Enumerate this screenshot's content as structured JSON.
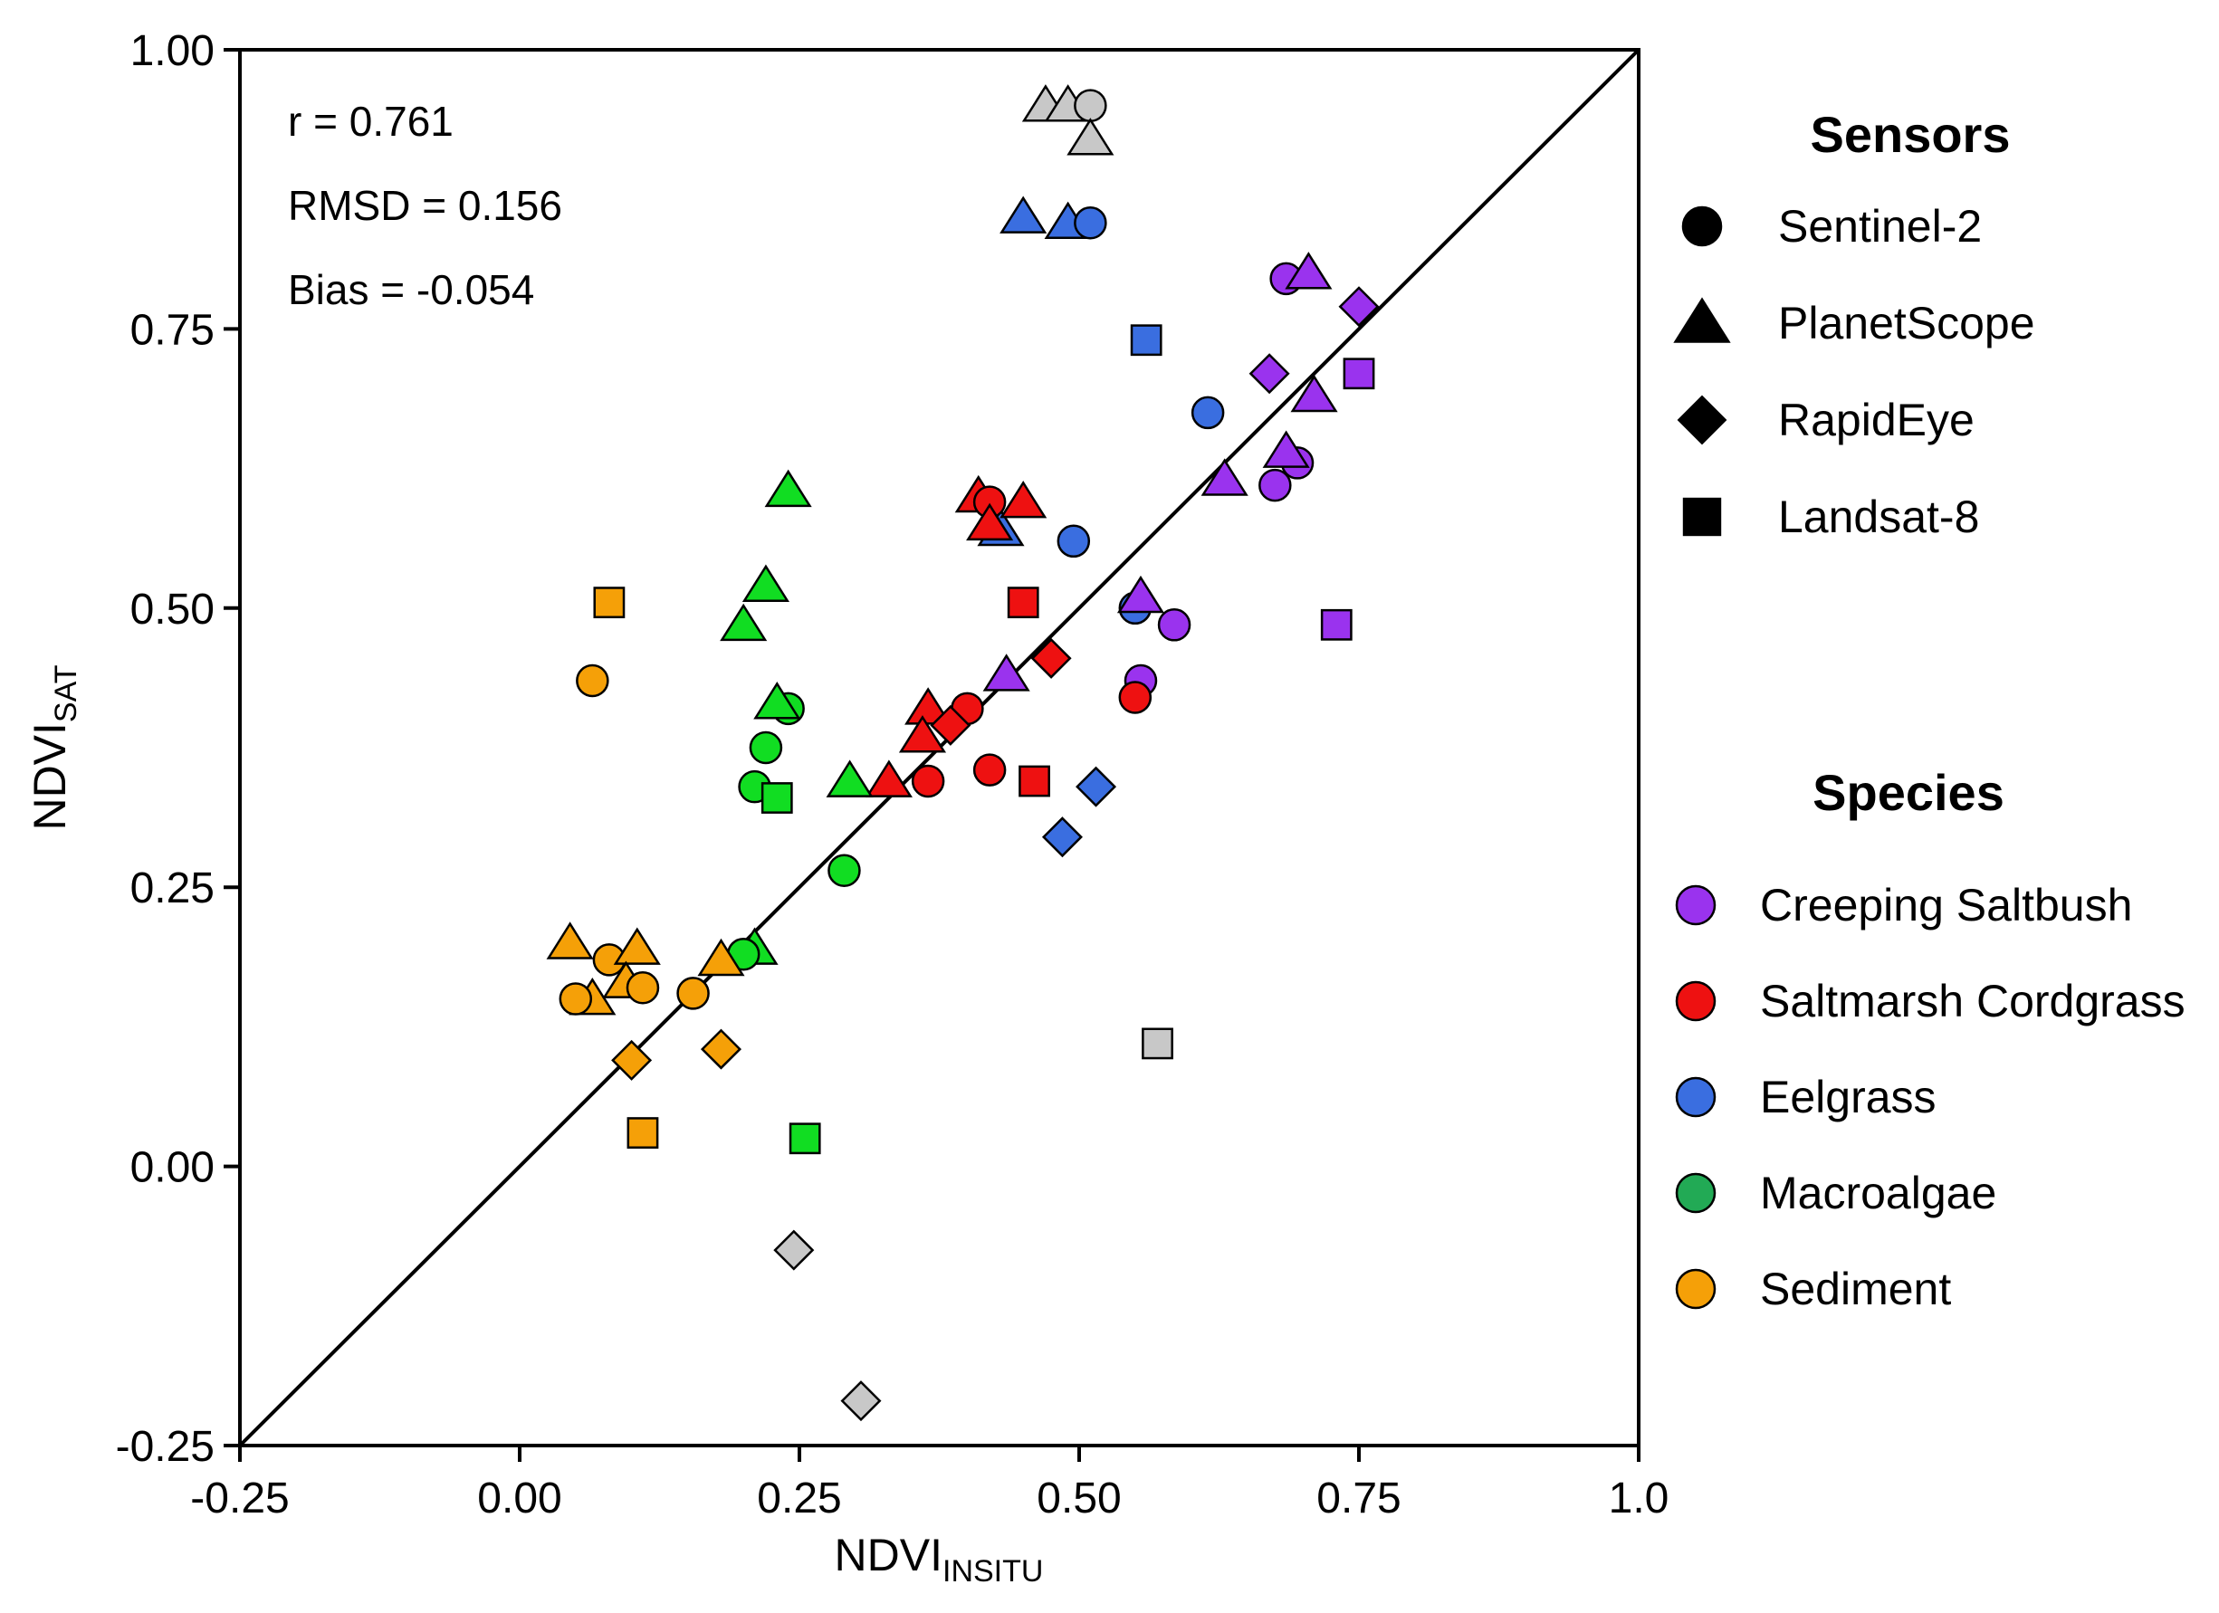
{
  "chart_data": {
    "type": "scatter",
    "xlabel": {
      "main": "NDVI",
      "sub": "INSITU"
    },
    "ylabel": {
      "main": "NDVI",
      "sub": "SAT"
    },
    "xlim": [
      -0.25,
      1.0
    ],
    "ylim": [
      -0.25,
      1.0
    ],
    "x_ticks": [
      "-0.25",
      "0.00",
      "0.25",
      "0.50",
      "0.75",
      "1.0"
    ],
    "x_tick_values": [
      -0.25,
      0,
      0.25,
      0.5,
      0.75,
      1.0
    ],
    "y_ticks": [
      "-0.25",
      "0.00",
      "0.25",
      "0.50",
      "0.75",
      "1.00"
    ],
    "y_tick_values": [
      -0.25,
      0,
      0.25,
      0.5,
      0.75,
      1.0
    ],
    "reference_line": "1:1",
    "stats": [
      "r = 0.761",
      "RMSD = 0.156",
      "Bias = -0.054"
    ],
    "legend_sensors_title": "Sensors",
    "sensors": [
      {
        "key": "circle",
        "label": "Sentinel-2"
      },
      {
        "key": "triangle",
        "label": "PlanetScope"
      },
      {
        "key": "diamond",
        "label": "RapidEye"
      },
      {
        "key": "square",
        "label": "Landsat-8"
      }
    ],
    "legend_species_title": "Species",
    "species": [
      {
        "key": "saltbush",
        "label": "Creeping Saltbush",
        "color": "#9a33ee"
      },
      {
        "key": "cordgrass",
        "label": "Saltmarsh Cordgrass",
        "color": "#ee1111"
      },
      {
        "key": "eelgrass",
        "label": "Eelgrass",
        "color": "#3a6ee0"
      },
      {
        "key": "macroalgae",
        "label": "Macroalgae",
        "color": "#11dd22"
      },
      {
        "key": "sediment",
        "label": "Sediment",
        "color": "#f5a008"
      }
    ],
    "legend_macroalgae_color": "#22aa55",
    "excluded_color": "#c8c8c8",
    "points": [
      {
        "x": 0.47,
        "y": 0.95,
        "sensor": "triangle",
        "species": "excluded"
      },
      {
        "x": 0.49,
        "y": 0.95,
        "sensor": "triangle",
        "species": "excluded"
      },
      {
        "x": 0.51,
        "y": 0.95,
        "sensor": "circle",
        "species": "excluded"
      },
      {
        "x": 0.51,
        "y": 0.92,
        "sensor": "triangle",
        "species": "excluded"
      },
      {
        "x": 0.57,
        "y": 0.11,
        "sensor": "square",
        "species": "excluded"
      },
      {
        "x": 0.245,
        "y": -0.075,
        "sensor": "diamond",
        "species": "excluded"
      },
      {
        "x": 0.305,
        "y": -0.21,
        "sensor": "diamond",
        "species": "excluded"
      },
      {
        "x": 0.45,
        "y": 0.85,
        "sensor": "triangle",
        "species": "eelgrass"
      },
      {
        "x": 0.49,
        "y": 0.845,
        "sensor": "triangle",
        "species": "eelgrass"
      },
      {
        "x": 0.51,
        "y": 0.845,
        "sensor": "circle",
        "species": "eelgrass"
      },
      {
        "x": 0.56,
        "y": 0.74,
        "sensor": "square",
        "species": "eelgrass"
      },
      {
        "x": 0.615,
        "y": 0.675,
        "sensor": "circle",
        "species": "eelgrass"
      },
      {
        "x": 0.495,
        "y": 0.56,
        "sensor": "circle",
        "species": "eelgrass"
      },
      {
        "x": 0.43,
        "y": 0.57,
        "sensor": "triangle",
        "species": "eelgrass"
      },
      {
        "x": 0.55,
        "y": 0.5,
        "sensor": "circle",
        "species": "eelgrass"
      },
      {
        "x": 0.515,
        "y": 0.34,
        "sensor": "diamond",
        "species": "eelgrass"
      },
      {
        "x": 0.485,
        "y": 0.295,
        "sensor": "diamond",
        "species": "eelgrass"
      },
      {
        "x": 0.685,
        "y": 0.795,
        "sensor": "circle",
        "species": "saltbush"
      },
      {
        "x": 0.705,
        "y": 0.8,
        "sensor": "triangle",
        "species": "saltbush"
      },
      {
        "x": 0.75,
        "y": 0.77,
        "sensor": "diamond",
        "species": "saltbush"
      },
      {
        "x": 0.67,
        "y": 0.71,
        "sensor": "diamond",
        "species": "saltbush"
      },
      {
        "x": 0.75,
        "y": 0.71,
        "sensor": "square",
        "species": "saltbush"
      },
      {
        "x": 0.71,
        "y": 0.69,
        "sensor": "triangle",
        "species": "saltbush"
      },
      {
        "x": 0.695,
        "y": 0.63,
        "sensor": "circle",
        "species": "saltbush"
      },
      {
        "x": 0.685,
        "y": 0.64,
        "sensor": "triangle",
        "species": "saltbush"
      },
      {
        "x": 0.675,
        "y": 0.61,
        "sensor": "circle",
        "species": "saltbush"
      },
      {
        "x": 0.63,
        "y": 0.615,
        "sensor": "triangle",
        "species": "saltbush"
      },
      {
        "x": 0.555,
        "y": 0.51,
        "sensor": "triangle",
        "species": "saltbush"
      },
      {
        "x": 0.585,
        "y": 0.485,
        "sensor": "circle",
        "species": "saltbush"
      },
      {
        "x": 0.73,
        "y": 0.485,
        "sensor": "square",
        "species": "saltbush"
      },
      {
        "x": 0.435,
        "y": 0.44,
        "sensor": "triangle",
        "species": "saltbush"
      },
      {
        "x": 0.555,
        "y": 0.435,
        "sensor": "circle",
        "species": "saltbush"
      },
      {
        "x": 0.41,
        "y": 0.6,
        "sensor": "triangle",
        "species": "cordgrass"
      },
      {
        "x": 0.42,
        "y": 0.595,
        "sensor": "circle",
        "species": "cordgrass"
      },
      {
        "x": 0.45,
        "y": 0.595,
        "sensor": "triangle",
        "species": "cordgrass"
      },
      {
        "x": 0.42,
        "y": 0.575,
        "sensor": "triangle",
        "species": "cordgrass"
      },
      {
        "x": 0.45,
        "y": 0.505,
        "sensor": "square",
        "species": "cordgrass"
      },
      {
        "x": 0.475,
        "y": 0.455,
        "sensor": "diamond",
        "species": "cordgrass"
      },
      {
        "x": 0.55,
        "y": 0.42,
        "sensor": "circle",
        "species": "cordgrass"
      },
      {
        "x": 0.365,
        "y": 0.41,
        "sensor": "triangle",
        "species": "cordgrass"
      },
      {
        "x": 0.4,
        "y": 0.41,
        "sensor": "circle",
        "species": "cordgrass"
      },
      {
        "x": 0.385,
        "y": 0.395,
        "sensor": "diamond",
        "species": "cordgrass"
      },
      {
        "x": 0.36,
        "y": 0.385,
        "sensor": "triangle",
        "species": "cordgrass"
      },
      {
        "x": 0.42,
        "y": 0.355,
        "sensor": "circle",
        "species": "cordgrass"
      },
      {
        "x": 0.33,
        "y": 0.345,
        "sensor": "triangle",
        "species": "cordgrass"
      },
      {
        "x": 0.365,
        "y": 0.345,
        "sensor": "circle",
        "species": "cordgrass"
      },
      {
        "x": 0.46,
        "y": 0.345,
        "sensor": "square",
        "species": "cordgrass"
      },
      {
        "x": 0.24,
        "y": 0.605,
        "sensor": "triangle",
        "species": "macroalgae"
      },
      {
        "x": 0.22,
        "y": 0.52,
        "sensor": "triangle",
        "species": "macroalgae"
      },
      {
        "x": 0.2,
        "y": 0.485,
        "sensor": "triangle",
        "species": "macroalgae"
      },
      {
        "x": 0.24,
        "y": 0.41,
        "sensor": "circle",
        "species": "macroalgae"
      },
      {
        "x": 0.23,
        "y": 0.415,
        "sensor": "triangle",
        "species": "macroalgae"
      },
      {
        "x": 0.22,
        "y": 0.375,
        "sensor": "circle",
        "species": "macroalgae"
      },
      {
        "x": 0.21,
        "y": 0.34,
        "sensor": "circle",
        "species": "macroalgae"
      },
      {
        "x": 0.23,
        "y": 0.33,
        "sensor": "square",
        "species": "macroalgae"
      },
      {
        "x": 0.295,
        "y": 0.345,
        "sensor": "triangle",
        "species": "macroalgae"
      },
      {
        "x": 0.29,
        "y": 0.265,
        "sensor": "circle",
        "species": "macroalgae"
      },
      {
        "x": 0.21,
        "y": 0.195,
        "sensor": "triangle",
        "species": "macroalgae"
      },
      {
        "x": 0.2,
        "y": 0.19,
        "sensor": "circle",
        "species": "macroalgae"
      },
      {
        "x": 0.255,
        "y": 0.025,
        "sensor": "square",
        "species": "macroalgae"
      },
      {
        "x": 0.08,
        "y": 0.505,
        "sensor": "square",
        "species": "sediment"
      },
      {
        "x": 0.065,
        "y": 0.435,
        "sensor": "circle",
        "species": "sediment"
      },
      {
        "x": 0.045,
        "y": 0.2,
        "sensor": "triangle",
        "species": "sediment"
      },
      {
        "x": 0.08,
        "y": 0.185,
        "sensor": "circle",
        "species": "sediment"
      },
      {
        "x": 0.105,
        "y": 0.195,
        "sensor": "triangle",
        "species": "sediment"
      },
      {
        "x": 0.065,
        "y": 0.15,
        "sensor": "triangle",
        "species": "sediment"
      },
      {
        "x": 0.095,
        "y": 0.165,
        "sensor": "triangle",
        "species": "sediment"
      },
      {
        "x": 0.05,
        "y": 0.15,
        "sensor": "circle",
        "species": "sediment"
      },
      {
        "x": 0.11,
        "y": 0.16,
        "sensor": "circle",
        "species": "sediment"
      },
      {
        "x": 0.155,
        "y": 0.155,
        "sensor": "circle",
        "species": "sediment"
      },
      {
        "x": 0.18,
        "y": 0.185,
        "sensor": "triangle",
        "species": "sediment"
      },
      {
        "x": 0.1,
        "y": 0.095,
        "sensor": "diamond",
        "species": "sediment"
      },
      {
        "x": 0.18,
        "y": 0.105,
        "sensor": "diamond",
        "species": "sediment"
      },
      {
        "x": 0.11,
        "y": 0.03,
        "sensor": "square",
        "species": "sediment"
      }
    ]
  }
}
